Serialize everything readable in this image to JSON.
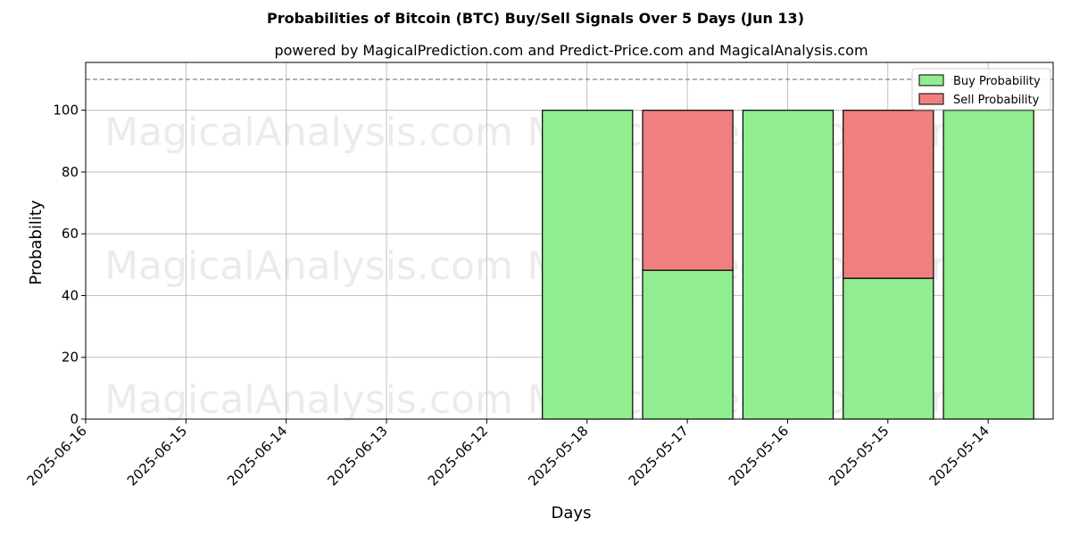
{
  "chart_data": {
    "type": "bar",
    "stacked": true,
    "title": "Probabilities of Bitcoin (BTC) Buy/Sell Signals Over 5 Days (Jun 13)",
    "subtitle": "powered by MagicalPrediction.com and Predict-Price.com and MagicalAnalysis.com",
    "xlabel": "Days",
    "ylabel": "Probability",
    "categories": [
      "2025-06-16",
      "2025-06-15",
      "2025-06-14",
      "2025-06-13",
      "2025-06-12",
      "2025-05-18",
      "2025-05-17",
      "2025-05-16",
      "2025-05-15",
      "2025-05-14"
    ],
    "series": [
      {
        "name": "Buy Probability",
        "color": "#90ee90",
        "values": [
          null,
          null,
          null,
          null,
          null,
          100,
          48.2,
          100,
          45.6,
          100
        ]
      },
      {
        "name": "Sell Probability",
        "color": "#f08080",
        "values": [
          null,
          null,
          null,
          null,
          null,
          0,
          51.8,
          0,
          54.4,
          0
        ]
      }
    ],
    "ylim": [
      0,
      115.5
    ],
    "yticks": [
      0,
      20,
      40,
      60,
      80,
      100
    ],
    "reference_line": 110,
    "grid": true,
    "legend_position": "top-right",
    "watermarks": [
      "MagicalAnalysis.com",
      "MagicalPrediction.com"
    ]
  }
}
